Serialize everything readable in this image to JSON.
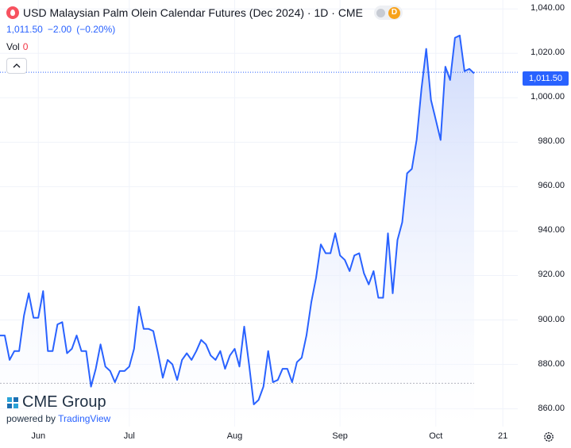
{
  "header": {
    "title": "USD Malaysian Palm Olein Calendar Futures (Dec 2024) · 1D · CME",
    "pill_label": "D",
    "last": "1,011.50",
    "change": "−2.00",
    "change_pct": "(−0.20%)",
    "vol_label": "Vol",
    "vol_value": "0"
  },
  "price_tag": "1,011.50",
  "brand": {
    "name": "CME Group",
    "powered": "powered by",
    "tv": "TradingView"
  },
  "colors": {
    "line": "#2962ff",
    "area_top": "#c9d6fb",
    "area_bottom": "#ffffff",
    "accent": "#2962ff",
    "negative": "#f23645"
  },
  "chart_data": {
    "type": "area",
    "ylim": [
      852,
      1044
    ],
    "yticks": [
      {
        "value": 860,
        "label": "860.00"
      },
      {
        "value": 880,
        "label": "880.00"
      },
      {
        "value": 900,
        "label": "900.00"
      },
      {
        "value": 920,
        "label": "920.00"
      },
      {
        "value": 940,
        "label": "940.00"
      },
      {
        "value": 960,
        "label": "960.00"
      },
      {
        "value": 980,
        "label": "980.00"
      },
      {
        "value": 1000,
        "label": "1,000.00"
      },
      {
        "value": 1020,
        "label": "1,020.00"
      },
      {
        "value": 1040,
        "label": "1,040.00"
      }
    ],
    "xticks": [
      {
        "index": 8,
        "label": "Jun"
      },
      {
        "index": 27,
        "label": "Jul"
      },
      {
        "index": 49,
        "label": "Aug"
      },
      {
        "index": 71,
        "label": "Sep"
      },
      {
        "index": 91,
        "label": "Oct"
      },
      {
        "index": 105,
        "label": "21"
      }
    ],
    "x_range": [
      0,
      113
    ],
    "last_value": 1011.5,
    "baseline": 871.5,
    "values": [
      893,
      893,
      882,
      886,
      886,
      902,
      912,
      901,
      901,
      913,
      886,
      886,
      898,
      899,
      885,
      887,
      893,
      886,
      886,
      870,
      878,
      889,
      879,
      877,
      872,
      877,
      877,
      879,
      887,
      906,
      896,
      896,
      895,
      885,
      874,
      882,
      880,
      873,
      882,
      885,
      882,
      886,
      891,
      889,
      884,
      882,
      886,
      878,
      884,
      887,
      879,
      897,
      880,
      862,
      864,
      870,
      886,
      872,
      873,
      878,
      878,
      872,
      881,
      883,
      893,
      908,
      919,
      934,
      930,
      930,
      939,
      929,
      927,
      922,
      929,
      930,
      921,
      916,
      922,
      910,
      910,
      939,
      912,
      936,
      944,
      966,
      968,
      981,
      1004,
      1022,
      999,
      990,
      981,
      1014,
      1008,
      1027,
      1028,
      1012,
      1013,
      1011
    ]
  }
}
